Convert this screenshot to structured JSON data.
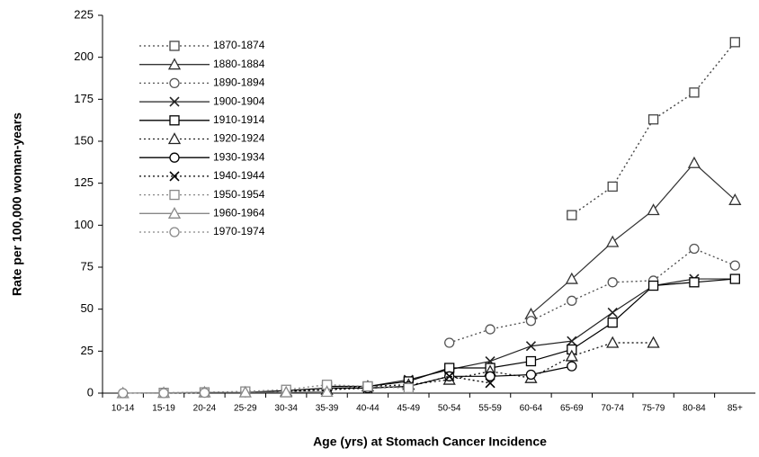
{
  "chart_data": {
    "type": "line",
    "x_label": "Age (yrs) at Stomach Cancer Incidence",
    "y_label": "Rate per 100,000 woman-years",
    "categories": [
      "10-14",
      "15-19",
      "20-24",
      "25-29",
      "30-34",
      "35-39",
      "40-44",
      "45-49",
      "50-54",
      "55-59",
      "60-64",
      "65-69",
      "70-74",
      "75-79",
      "80-84",
      "85+"
    ],
    "ylim": [
      0,
      225
    ],
    "yticks": [
      0,
      25,
      50,
      75,
      100,
      125,
      150,
      175,
      200,
      225
    ],
    "legend": "upper left",
    "series": [
      {
        "name": "1870-1874",
        "color": "#444444",
        "dashed": true,
        "marker": "square",
        "values": [
          null,
          null,
          null,
          null,
          null,
          null,
          null,
          null,
          null,
          null,
          null,
          106,
          123,
          163,
          179,
          209
        ]
      },
      {
        "name": "1880-1884",
        "color": "#333333",
        "dashed": false,
        "marker": "triangle",
        "values": [
          null,
          null,
          null,
          null,
          null,
          null,
          null,
          null,
          null,
          null,
          47,
          68,
          90,
          109,
          137,
          115
        ]
      },
      {
        "name": "1890-1894",
        "color": "#555555",
        "dashed": true,
        "marker": "circle",
        "values": [
          null,
          null,
          null,
          null,
          null,
          null,
          null,
          null,
          30,
          38,
          43,
          55,
          66,
          67,
          86,
          76
        ]
      },
      {
        "name": "1900-1904",
        "color": "#222222",
        "dashed": false,
        "marker": "x",
        "values": [
          null,
          null,
          null,
          null,
          null,
          null,
          4,
          8,
          14,
          19,
          28,
          31,
          48,
          64,
          68,
          68
        ]
      },
      {
        "name": "1910-1914",
        "color": "#000000",
        "dashed": false,
        "marker": "square",
        "values": [
          null,
          null,
          null,
          null,
          null,
          4,
          4,
          7,
          15,
          15,
          19,
          26,
          42,
          64,
          66,
          68
        ]
      },
      {
        "name": "1920-1924",
        "color": "#222222",
        "dashed": true,
        "marker": "triangle",
        "values": [
          null,
          null,
          null,
          null,
          1,
          2,
          4,
          5,
          8,
          13,
          9,
          22,
          30,
          30,
          null,
          null
        ]
      },
      {
        "name": "1930-1934",
        "color": "#000000",
        "dashed": false,
        "marker": "circle",
        "values": [
          null,
          null,
          null,
          0.5,
          1.5,
          3,
          3,
          4,
          10,
          10,
          11,
          16,
          null,
          null,
          null,
          null
        ]
      },
      {
        "name": "1940-1944",
        "color": "#000000",
        "dashed": true,
        "marker": "x",
        "values": [
          null,
          null,
          0.3,
          0.5,
          1,
          2,
          3,
          4,
          10,
          6,
          null,
          null,
          null,
          null,
          null,
          null
        ]
      },
      {
        "name": "1950-1954",
        "color": "#888888",
        "dashed": true,
        "marker": "square",
        "values": [
          null,
          0.2,
          0.5,
          1,
          2,
          5,
          4,
          3,
          null,
          null,
          null,
          null,
          null,
          null,
          null,
          null
        ]
      },
      {
        "name": "1960-1964",
        "color": "#888888",
        "dashed": false,
        "marker": "triangle",
        "values": [
          0,
          0.2,
          0.5,
          0.5,
          0.5,
          0.8,
          null,
          null,
          null,
          null,
          null,
          null,
          null,
          null,
          null,
          null
        ]
      },
      {
        "name": "1970-1974",
        "color": "#888888",
        "dashed": true,
        "marker": "circle",
        "values": [
          0,
          0,
          0.2,
          null,
          null,
          null,
          null,
          null,
          null,
          null,
          null,
          null,
          null,
          null,
          null,
          null
        ]
      }
    ]
  }
}
